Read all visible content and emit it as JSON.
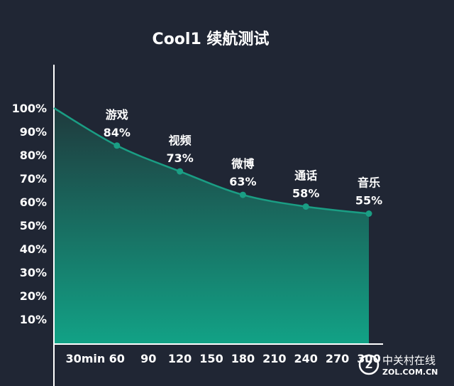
{
  "chart_data": {
    "type": "area",
    "title": "Cool1 续航测试",
    "x": [
      0,
      60,
      120,
      180,
      240,
      300
    ],
    "x_ticks": [
      "30min",
      "60",
      "90",
      "120",
      "150",
      "180",
      "210",
      "240",
      "270",
      "300"
    ],
    "y_ticks": [
      "100%",
      "90%",
      "80%",
      "70%",
      "60%",
      "50%",
      "40%",
      "30%",
      "20%",
      "10%"
    ],
    "series": [
      {
        "values": [
          100,
          84,
          73,
          63,
          58,
          55
        ],
        "point_labels": [
          "",
          "游戏",
          "视频",
          "微博",
          "通话",
          "音乐"
        ],
        "value_labels": [
          "",
          "84%",
          "73%",
          "63%",
          "58%",
          "55%"
        ]
      }
    ],
    "grid": false,
    "colors": {
      "background": "#202634",
      "line": "#1a9e84",
      "area_top": "#1f3a3d",
      "area_bottom": "#12a286",
      "text": "#ffffff"
    }
  },
  "watermark": {
    "brand_cn": "中关村在线",
    "brand_en": "ZOL.COM.CN"
  }
}
